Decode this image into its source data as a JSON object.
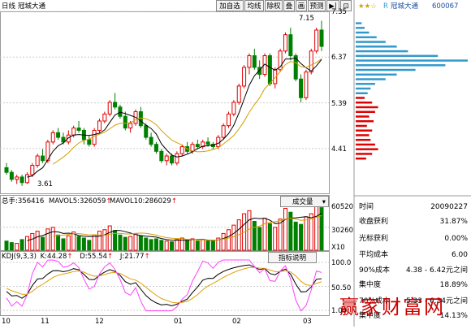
{
  "header": {
    "period_label": "日线",
    "stock_name": "冠城大通"
  },
  "toolbar": {
    "buttons": [
      "加自选",
      "均线",
      "除权",
      "叠",
      "画",
      "预测",
      "▶|",
      "⊡"
    ]
  },
  "price_axis": {
    "labels": [
      "7.35",
      "6.37",
      "5.39",
      "4.41"
    ],
    "high_label": "7.15",
    "low_label": "3.61"
  },
  "volume_panel": {
    "total_label": "总手:",
    "total_value": "356416",
    "mavol5_label": "MAVOL5:",
    "mavol5_value": "326059",
    "mavol10_label": "MAVOL10:",
    "mavol10_value": "286029",
    "selector_label": "成交量",
    "axis_labels": [
      "60520",
      "30260",
      "X10"
    ]
  },
  "kdj_panel": {
    "title": "KDJ(9,3,3)",
    "k_label": "K:",
    "k_value": "44.28",
    "d_label": "D:",
    "d_value": "55.54",
    "j_label": "J:",
    "j_value": "21.77",
    "indicator_button": "指标说明",
    "axis_labels": [
      "100.0",
      "50.50",
      "1.00"
    ]
  },
  "date_axis": [
    "10",
    "11",
    "12",
    "01",
    "02",
    "03"
  ],
  "right_panel": {
    "stock_title": "冠城大通",
    "stock_code": "600067",
    "rows": [
      {
        "label": "时间",
        "value": "20090227"
      },
      {
        "label": "收盘获利",
        "value": "31.87%"
      },
      {
        "label": "光标获利",
        "value": "0.00%"
      },
      {
        "label": "平均成本",
        "value": "6.00"
      },
      {
        "label": "90%成本",
        "value": "4.38 - 6.42元之间"
      },
      {
        "label": "集中度",
        "value": "18.89%"
      },
      {
        "label": "70%成本",
        "value": "5.33 - 6.34元之间"
      },
      {
        "label": "集中度",
        "value": "14.13%"
      }
    ]
  },
  "watermark": "赢家财富网",
  "colors": {
    "up": "#e00000",
    "down": "#008000",
    "ma5": "#000000",
    "ma10": "#d4a000",
    "k_line": "#000000",
    "d_line": "#e0a000",
    "j_line": "#ff40ff",
    "profit_bar": "#3399cc",
    "loss_bar": "#e00000"
  },
  "chart_data": {
    "type": "candlestick",
    "candles": [
      {
        "o": 4.0,
        "h": 4.1,
        "l": 3.85,
        "c": 3.9
      },
      {
        "o": 3.9,
        "h": 3.95,
        "l": 3.7,
        "c": 3.75
      },
      {
        "o": 3.75,
        "h": 3.85,
        "l": 3.65,
        "c": 3.8
      },
      {
        "o": 3.8,
        "h": 3.85,
        "l": 3.61,
        "c": 3.68
      },
      {
        "o": 3.68,
        "h": 3.9,
        "l": 3.65,
        "c": 3.85
      },
      {
        "o": 3.85,
        "h": 4.1,
        "l": 3.8,
        "c": 4.05
      },
      {
        "o": 4.05,
        "h": 4.3,
        "l": 4.0,
        "c": 4.25
      },
      {
        "o": 4.25,
        "h": 4.4,
        "l": 4.1,
        "c": 4.15
      },
      {
        "o": 4.15,
        "h": 4.6,
        "l": 4.1,
        "c": 4.55
      },
      {
        "o": 4.55,
        "h": 4.8,
        "l": 4.5,
        "c": 4.75
      },
      {
        "o": 4.75,
        "h": 4.85,
        "l": 4.6,
        "c": 4.65
      },
      {
        "o": 4.65,
        "h": 4.75,
        "l": 4.5,
        "c": 4.55
      },
      {
        "o": 4.55,
        "h": 4.8,
        "l": 4.5,
        "c": 4.7
      },
      {
        "o": 4.7,
        "h": 4.9,
        "l": 4.65,
        "c": 4.85
      },
      {
        "o": 4.85,
        "h": 5.0,
        "l": 4.75,
        "c": 4.8
      },
      {
        "o": 4.8,
        "h": 4.85,
        "l": 4.5,
        "c": 4.6
      },
      {
        "o": 4.6,
        "h": 4.7,
        "l": 4.45,
        "c": 4.5
      },
      {
        "o": 4.5,
        "h": 4.85,
        "l": 4.45,
        "c": 4.8
      },
      {
        "o": 4.8,
        "h": 5.05,
        "l": 4.75,
        "c": 5.0
      },
      {
        "o": 5.0,
        "h": 5.2,
        "l": 4.95,
        "c": 5.15
      },
      {
        "o": 5.15,
        "h": 5.45,
        "l": 5.1,
        "c": 5.4
      },
      {
        "o": 5.4,
        "h": 5.6,
        "l": 5.25,
        "c": 5.3
      },
      {
        "o": 5.3,
        "h": 5.35,
        "l": 5.05,
        "c": 5.1
      },
      {
        "o": 5.1,
        "h": 5.2,
        "l": 4.8,
        "c": 4.85
      },
      {
        "o": 4.85,
        "h": 5.0,
        "l": 4.75,
        "c": 4.95
      },
      {
        "o": 4.95,
        "h": 5.25,
        "l": 4.9,
        "c": 5.2
      },
      {
        "o": 5.2,
        "h": 5.3,
        "l": 4.85,
        "c": 4.9
      },
      {
        "o": 4.9,
        "h": 4.95,
        "l": 4.6,
        "c": 4.65
      },
      {
        "o": 4.65,
        "h": 4.75,
        "l": 4.45,
        "c": 4.5
      },
      {
        "o": 4.5,
        "h": 4.55,
        "l": 4.3,
        "c": 4.35
      },
      {
        "o": 4.35,
        "h": 4.4,
        "l": 4.1,
        "c": 4.15
      },
      {
        "o": 4.15,
        "h": 4.3,
        "l": 4.05,
        "c": 4.25
      },
      {
        "o": 4.25,
        "h": 4.3,
        "l": 4.05,
        "c": 4.1
      },
      {
        "o": 4.1,
        "h": 4.35,
        "l": 4.05,
        "c": 4.3
      },
      {
        "o": 4.3,
        "h": 4.5,
        "l": 4.25,
        "c": 4.45
      },
      {
        "o": 4.45,
        "h": 4.55,
        "l": 4.3,
        "c": 4.35
      },
      {
        "o": 4.35,
        "h": 4.55,
        "l": 4.3,
        "c": 4.5
      },
      {
        "o": 4.5,
        "h": 4.6,
        "l": 4.4,
        "c": 4.45
      },
      {
        "o": 4.45,
        "h": 4.6,
        "l": 4.4,
        "c": 4.55
      },
      {
        "o": 4.55,
        "h": 4.65,
        "l": 4.45,
        "c": 4.5
      },
      {
        "o": 4.5,
        "h": 4.55,
        "l": 4.4,
        "c": 4.45
      },
      {
        "o": 4.45,
        "h": 4.7,
        "l": 4.4,
        "c": 4.65
      },
      {
        "o": 4.65,
        "h": 4.95,
        "l": 4.6,
        "c": 4.9
      },
      {
        "o": 4.9,
        "h": 5.2,
        "l": 4.85,
        "c": 5.15
      },
      {
        "o": 5.15,
        "h": 5.45,
        "l": 5.1,
        "c": 5.4
      },
      {
        "o": 5.4,
        "h": 5.8,
        "l": 5.35,
        "c": 5.75
      },
      {
        "o": 5.75,
        "h": 6.2,
        "l": 5.7,
        "c": 6.15
      },
      {
        "o": 6.15,
        "h": 6.45,
        "l": 6.0,
        "c": 6.4
      },
      {
        "o": 6.4,
        "h": 6.55,
        "l": 6.1,
        "c": 6.15
      },
      {
        "o": 6.15,
        "h": 6.3,
        "l": 5.9,
        "c": 6.0
      },
      {
        "o": 6.0,
        "h": 6.45,
        "l": 5.95,
        "c": 6.4
      },
      {
        "o": 6.4,
        "h": 6.45,
        "l": 5.75,
        "c": 5.8
      },
      {
        "o": 5.8,
        "h": 6.15,
        "l": 5.7,
        "c": 6.1
      },
      {
        "o": 6.1,
        "h": 6.55,
        "l": 6.05,
        "c": 6.5
      },
      {
        "o": 6.5,
        "h": 6.9,
        "l": 6.45,
        "c": 6.85
      },
      {
        "o": 6.85,
        "h": 7.0,
        "l": 6.3,
        "c": 6.4
      },
      {
        "o": 6.4,
        "h": 6.45,
        "l": 5.85,
        "c": 5.9
      },
      {
        "o": 5.9,
        "h": 6.0,
        "l": 5.4,
        "c": 5.5
      },
      {
        "o": 5.5,
        "h": 6.1,
        "l": 5.45,
        "c": 6.05
      },
      {
        "o": 6.05,
        "h": 6.55,
        "l": 6.0,
        "c": 6.5
      },
      {
        "o": 6.5,
        "h": 7.0,
        "l": 6.45,
        "c": 6.95
      },
      {
        "o": 6.95,
        "h": 7.15,
        "l": 6.5,
        "c": 6.6
      }
    ],
    "volume": [
      12,
      10,
      9,
      14,
      18,
      22,
      25,
      17,
      28,
      30,
      20,
      15,
      19,
      24,
      18,
      16,
      13,
      20,
      25,
      27,
      32,
      26,
      20,
      17,
      18,
      22,
      19,
      16,
      14,
      15,
      13,
      12,
      11,
      14,
      16,
      13,
      15,
      12,
      14,
      13,
      12,
      16,
      22,
      27,
      33,
      40,
      48,
      52,
      38,
      30,
      42,
      35,
      30,
      41,
      55,
      50,
      37,
      34,
      44,
      48,
      60,
      56
    ],
    "price_axis": [
      4.41,
      5.39,
      6.37,
      7.35
    ],
    "volume_axis": [
      30260,
      60520
    ],
    "kdj_axis": [
      1.0,
      50.5,
      100.0
    ],
    "x_ticks": [
      "10",
      "11",
      "12",
      "01",
      "02",
      "03"
    ],
    "chip_distribution_levels": [
      4.2,
      4.3,
      4.4,
      4.5,
      4.6,
      4.7,
      4.8,
      4.9,
      5.0,
      5.1,
      5.2,
      5.3,
      5.4,
      5.5,
      5.6,
      5.7,
      5.8,
      5.9,
      6.0,
      6.1,
      6.2,
      6.3,
      6.4,
      6.5,
      6.6,
      6.7,
      6.8,
      6.9,
      7.0,
      7.1
    ],
    "chip_distribution_amounts": [
      14,
      22,
      30,
      26,
      20,
      18,
      22,
      15,
      24,
      18,
      26,
      30,
      22,
      12,
      16,
      20,
      26,
      40,
      55,
      80,
      120,
      150,
      110,
      70,
      55,
      40,
      28,
      18,
      12,
      8
    ]
  }
}
